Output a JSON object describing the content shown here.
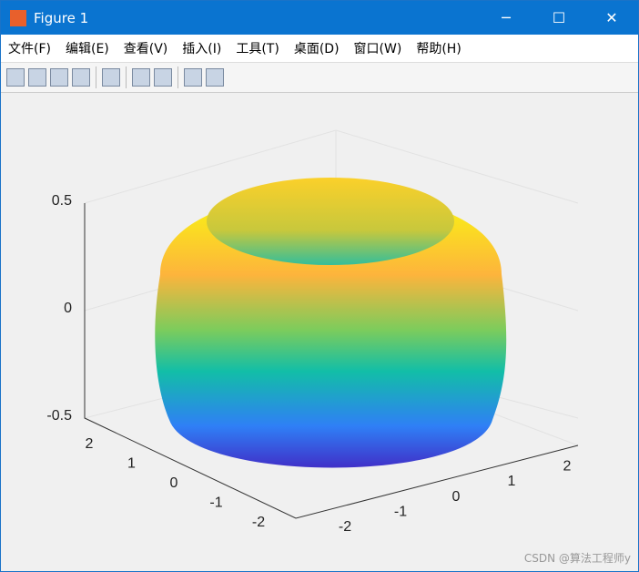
{
  "window": {
    "title": "Figure 1"
  },
  "menu": [
    "文件(F)",
    "编辑(E)",
    "查看(V)",
    "插入(I)",
    "工具(T)",
    "桌面(D)",
    "窗口(W)",
    "帮助(H)"
  ],
  "axes": {
    "zticks": [
      "0.5",
      "0",
      "-0.5"
    ],
    "yticks": [
      "2",
      "1",
      "0",
      "-1",
      "-2"
    ],
    "xticks": [
      "-2",
      "-1",
      "0",
      "1",
      "2"
    ]
  },
  "watermark": "CSDN @算法工程师y"
}
